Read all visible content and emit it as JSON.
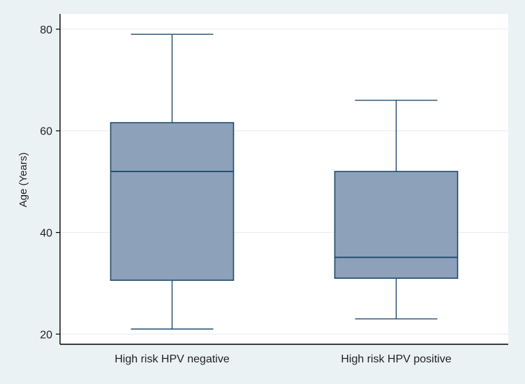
{
  "chart_data": {
    "type": "box",
    "title": "",
    "xlabel": "",
    "ylabel": "Age (Years)",
    "ylim": [
      18,
      83
    ],
    "yticks": [
      20,
      40,
      60,
      80
    ],
    "grid": true,
    "categories": [
      "High risk HPV negative",
      "High risk HPV positive"
    ],
    "boxes": [
      {
        "name": "High risk HPV negative",
        "whisker_low": 21,
        "q1": 30.6,
        "median": 52,
        "q3": 61.6,
        "whisker_high": 79
      },
      {
        "name": "High risk HPV positive",
        "whisker_low": 23,
        "q1": 31,
        "median": 35.1,
        "q3": 52,
        "whisker_high": 66
      }
    ],
    "colors": {
      "box_fill": "#8da1bb",
      "box_stroke": "#1f4a6e",
      "grid": "#e6ecee",
      "plot_bg": "#ffffff",
      "outer_bg": "#eaf2f3",
      "axis": "#000000"
    }
  }
}
